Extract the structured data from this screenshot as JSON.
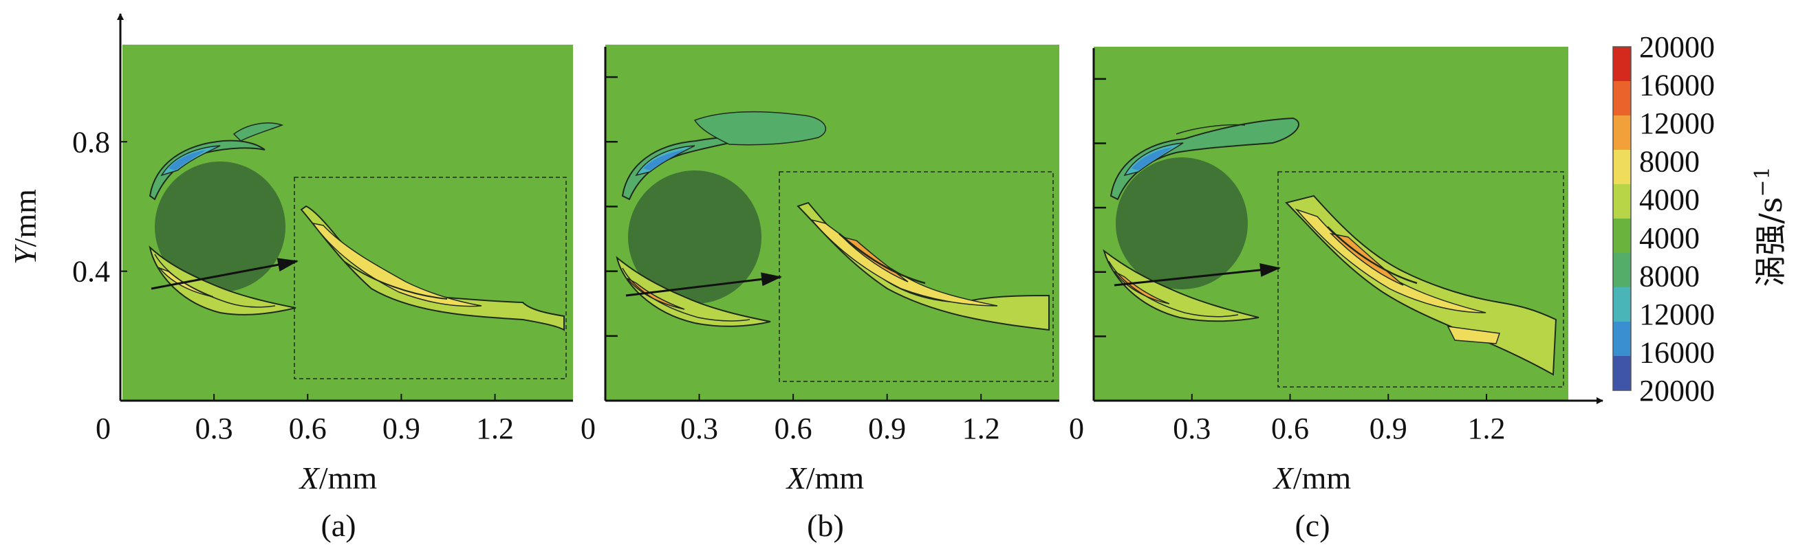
{
  "chart_data": {
    "type": "heatmap",
    "description_title": "",
    "colors": {
      "background_field": "#6ab43e",
      "cylinder": "#417535",
      "contour_line": "#1e2a1e"
    },
    "panels": [
      {
        "label": "(a)",
        "xlabel_var": "X",
        "xlabel_unit": "/mm",
        "ylabel_var": "Y",
        "ylabel_unit": "/mm",
        "xticks": [
          "0",
          "0.3",
          "0.6",
          "0.9",
          "1.2"
        ],
        "xtick_values": [
          0,
          0.3,
          0.6,
          0.9,
          1.2
        ],
        "yticks": [
          "0.4",
          "0.8"
        ],
        "ytick_values": [
          0.4,
          0.8
        ],
        "xlim": [
          0,
          1.45
        ],
        "ylim": [
          0,
          1.1
        ],
        "cylinder": {
          "cx": 0.31,
          "cy": 0.55,
          "r": 0.21
        }
      },
      {
        "label": "(b)",
        "xlabel_var": "X",
        "xlabel_unit": "/mm",
        "xticks": [
          "0",
          "0.3",
          "0.6",
          "0.9",
          "1.2"
        ],
        "xtick_values": [
          0,
          0.3,
          0.6,
          0.9,
          1.2
        ],
        "xlim": [
          0,
          1.45
        ],
        "ylim": [
          0,
          1.1
        ],
        "cylinder": {
          "cx": 0.31,
          "cy": 0.55,
          "r": 0.21
        }
      },
      {
        "label": "(c)",
        "xlabel_var": "X",
        "xlabel_unit": "/mm",
        "xticks": [
          "0",
          "0.3",
          "0.6",
          "0.9",
          "1.2"
        ],
        "xtick_values": [
          0,
          0.3,
          0.6,
          0.9,
          1.2
        ],
        "xlim": [
          0,
          1.45
        ],
        "ylim": [
          0,
          1.1
        ],
        "cylinder": {
          "cx": 0.31,
          "cy": 0.55,
          "r": 0.21
        }
      }
    ],
    "colorbar": {
      "title_main": "涡强/s",
      "title_sup": "−1",
      "labels": [
        "20000",
        "16000",
        "12000",
        "8000",
        "4000",
        "4000",
        "8000",
        "12000",
        "16000",
        "20000"
      ],
      "stops": [
        "#d42a1e",
        "#e9632a",
        "#f1a03a",
        "#eedc5a",
        "#b8d548",
        "#6ab43e",
        "#55ad6a",
        "#4ab5b8",
        "#3a8fd0",
        "#3f55a8"
      ]
    }
  }
}
